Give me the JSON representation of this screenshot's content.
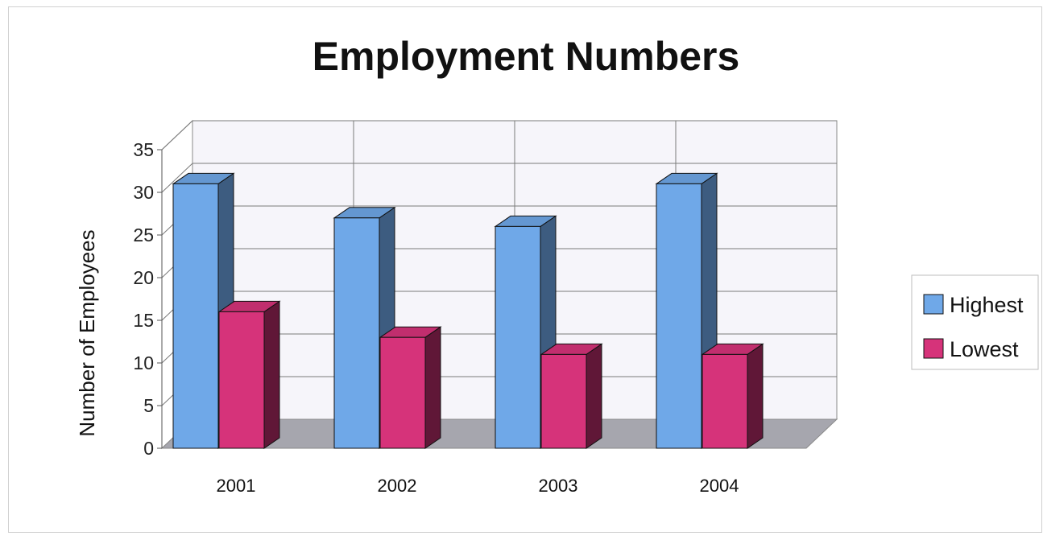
{
  "chart_data": {
    "type": "bar",
    "title": "Employment Numbers",
    "xlabel": "",
    "ylabel": "Number of Employees",
    "categories": [
      "2001",
      "2002",
      "2003",
      "2004"
    ],
    "series": [
      {
        "name": "Highest",
        "values": [
          31,
          27,
          26,
          31
        ],
        "color": "#6fa8e8"
      },
      {
        "name": "Lowest",
        "values": [
          16,
          13,
          11,
          11
        ],
        "color": "#d6337a"
      }
    ],
    "ylim": [
      0,
      35
    ],
    "yticks": [
      0,
      5,
      10,
      15,
      20,
      25,
      30,
      35
    ],
    "grid": true,
    "legend": "right",
    "style": "3d-column"
  }
}
